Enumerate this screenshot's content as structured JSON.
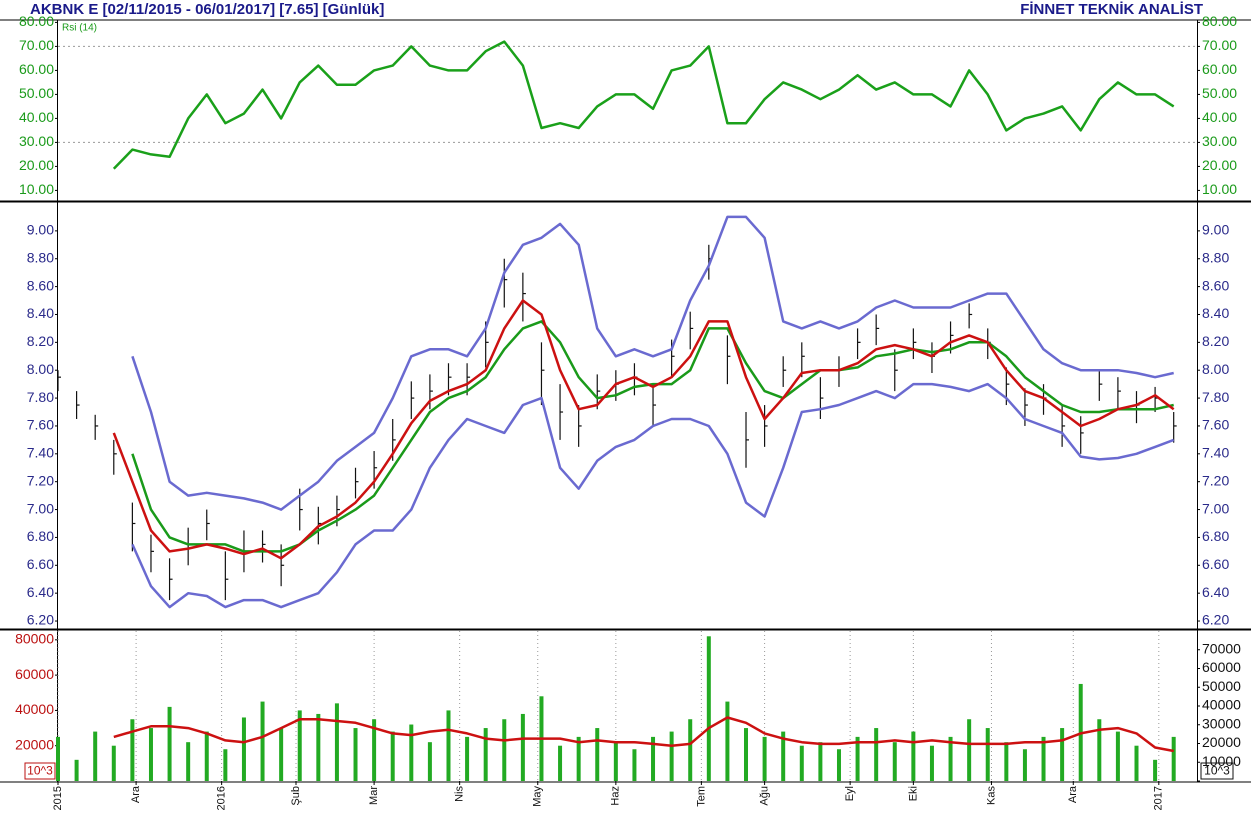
{
  "chart_data": [
    {
      "type": "line",
      "title": "AKBNK E  [02/11/2015 - 06/01/2017]  [7.65]  [Günlük]",
      "source": "FİNNET TEKNİK ANALİST",
      "label": "Rsi (14)",
      "tick_color": "#1a9a1a",
      "x": [
        0,
        5,
        10,
        15,
        20,
        25,
        30,
        35,
        40,
        45,
        50,
        55,
        60,
        65,
        70,
        75,
        80,
        85,
        90,
        95,
        100,
        105,
        110,
        115,
        120,
        125,
        130,
        135,
        140,
        145,
        150,
        155,
        160,
        165,
        170,
        175,
        180,
        185,
        190,
        195,
        200,
        205,
        210,
        215,
        220,
        225,
        230,
        235,
        240,
        245,
        250,
        255,
        260,
        265,
        270,
        275,
        280,
        285,
        290,
        295,
        300
      ],
      "xlim": [
        0,
        306
      ],
      "ylim": [
        6,
        81
      ],
      "yticks": [
        {
          "value": 10,
          "label": "10.00"
        },
        {
          "value": 20,
          "label": "20.00"
        },
        {
          "value": 30,
          "label": "30.00"
        },
        {
          "value": 40,
          "label": "40.00"
        },
        {
          "value": 50,
          "label": "50.00"
        },
        {
          "value": 60,
          "label": "60.00"
        },
        {
          "value": 70,
          "label": "70.00"
        },
        {
          "value": 80,
          "label": "80.00"
        }
      ],
      "levels": [
        30,
        70
      ],
      "series": [
        {
          "name": "Rsi (14)",
          "color": "#1aa01a",
          "values": [
            null,
            null,
            null,
            19,
            27,
            25,
            24,
            40,
            50,
            38,
            42,
            52,
            40,
            55,
            62,
            54,
            54,
            60,
            62,
            70,
            62,
            60,
            60,
            68,
            72,
            62,
            36,
            38,
            36,
            45,
            50,
            50,
            44,
            60,
            62,
            70,
            38,
            38,
            48,
            55,
            52,
            48,
            52,
            58,
            52,
            55,
            50,
            50,
            45,
            60,
            50,
            35,
            40,
            42,
            45,
            35,
            48,
            55,
            50,
            50,
            45
          ]
        }
      ]
    },
    {
      "type": "ohlc",
      "tick_color": "#2a2a8a",
      "x": [
        0,
        5,
        10,
        15,
        20,
        25,
        30,
        35,
        40,
        45,
        50,
        55,
        60,
        65,
        70,
        75,
        80,
        85,
        90,
        95,
        100,
        105,
        110,
        115,
        120,
        125,
        130,
        135,
        140,
        145,
        150,
        155,
        160,
        165,
        170,
        175,
        180,
        185,
        190,
        195,
        200,
        205,
        210,
        215,
        220,
        225,
        230,
        235,
        240,
        245,
        250,
        255,
        260,
        265,
        270,
        275,
        280,
        285,
        290,
        295,
        300
      ],
      "xlim": [
        0,
        306
      ],
      "ylim": [
        6.15,
        9.2
      ],
      "yticks": [
        {
          "value": 6.2,
          "label": "6.20"
        },
        {
          "value": 6.4,
          "label": "6.40"
        },
        {
          "value": 6.6,
          "label": "6.60"
        },
        {
          "value": 6.8,
          "label": "6.80"
        },
        {
          "value": 7,
          "label": "7.00"
        },
        {
          "value": 7.2,
          "label": "7.20"
        },
        {
          "value": 7.4,
          "label": "7.40"
        },
        {
          "value": 7.6,
          "label": "7.60"
        },
        {
          "value": 7.8,
          "label": "7.80"
        },
        {
          "value": 8,
          "label": "8.00"
        },
        {
          "value": 8.2,
          "label": "8.20"
        },
        {
          "value": 8.4,
          "label": "8.40"
        },
        {
          "value": 8.6,
          "label": "8.60"
        },
        {
          "value": 8.8,
          "label": "8.80"
        },
        {
          "value": 9,
          "label": "9.00"
        }
      ],
      "bar_color": "#111111",
      "high": [
        8.0,
        7.85,
        7.68,
        7.5,
        7.05,
        6.82,
        6.65,
        6.87,
        7.0,
        6.7,
        6.85,
        6.85,
        6.75,
        7.15,
        7.02,
        7.1,
        7.3,
        7.42,
        7.65,
        7.92,
        7.97,
        8.05,
        8.05,
        8.35,
        8.8,
        8.7,
        8.2,
        7.9,
        7.75,
        7.97,
        8.0,
        8.05,
        7.9,
        8.22,
        8.42,
        8.9,
        8.25,
        7.7,
        7.75,
        8.1,
        8.2,
        7.95,
        8.1,
        8.3,
        8.4,
        8.15,
        8.3,
        8.2,
        8.35,
        8.48,
        8.3,
        8.02,
        7.87,
        7.9,
        7.75,
        7.67,
        8.0,
        7.95,
        7.85,
        7.88,
        7.7
      ],
      "low": [
        7.85,
        7.65,
        7.5,
        7.25,
        6.7,
        6.55,
        6.35,
        6.6,
        6.78,
        6.35,
        6.55,
        6.62,
        6.45,
        6.85,
        6.75,
        6.88,
        7.08,
        7.15,
        7.35,
        7.65,
        7.72,
        7.82,
        7.82,
        8.02,
        8.45,
        8.35,
        7.75,
        7.5,
        7.45,
        7.72,
        7.78,
        7.82,
        7.6,
        7.95,
        8.15,
        8.65,
        7.9,
        7.3,
        7.45,
        7.88,
        7.95,
        7.65,
        7.88,
        8.08,
        8.18,
        7.85,
        8.08,
        7.98,
        8.12,
        8.3,
        8.08,
        7.75,
        7.6,
        7.68,
        7.45,
        7.4,
        7.78,
        7.72,
        7.62,
        7.7,
        7.48
      ],
      "close": [
        7.95,
        7.75,
        7.6,
        7.4,
        6.9,
        6.7,
        6.5,
        6.75,
        6.9,
        6.5,
        6.7,
        6.75,
        6.6,
        7.0,
        6.9,
        7.0,
        7.2,
        7.3,
        7.5,
        7.8,
        7.85,
        7.95,
        7.95,
        8.2,
        8.65,
        8.55,
        8.0,
        7.7,
        7.6,
        7.85,
        7.9,
        7.95,
        7.75,
        8.1,
        8.3,
        8.8,
        8.1,
        7.5,
        7.6,
        8.0,
        8.1,
        7.8,
        8.0,
        8.2,
        8.3,
        8.0,
        8.2,
        8.1,
        8.25,
        8.4,
        8.2,
        7.9,
        7.75,
        7.8,
        7.6,
        7.55,
        7.9,
        7.85,
        7.75,
        7.8,
        7.6
      ],
      "series": [
        {
          "color": "#6a6ad0",
          "values": [
            null,
            null,
            null,
            null,
            8.1,
            7.7,
            7.2,
            7.1,
            7.12,
            7.1,
            7.08,
            7.05,
            7.0,
            7.1,
            7.2,
            7.35,
            7.45,
            7.55,
            7.8,
            8.1,
            8.15,
            8.15,
            8.1,
            8.3,
            8.7,
            8.9,
            8.95,
            9.05,
            8.9,
            8.3,
            8.1,
            8.15,
            8.1,
            8.15,
            8.5,
            8.75,
            9.1,
            9.1,
            8.95,
            8.35,
            8.3,
            8.35,
            8.3,
            8.35,
            8.45,
            8.5,
            8.45,
            8.45,
            8.45,
            8.5,
            8.55,
            8.55,
            8.35,
            8.15,
            8.05,
            8.0,
            8.0,
            8.0,
            7.98,
            7.95,
            7.98
          ]
        },
        {
          "color": "#6a6ad0",
          "values": [
            null,
            null,
            null,
            null,
            6.75,
            6.45,
            6.3,
            6.4,
            6.38,
            6.3,
            6.35,
            6.35,
            6.3,
            6.35,
            6.4,
            6.55,
            6.75,
            6.85,
            6.85,
            7.0,
            7.3,
            7.5,
            7.65,
            7.6,
            7.55,
            7.75,
            7.8,
            7.3,
            7.15,
            7.35,
            7.45,
            7.5,
            7.6,
            7.65,
            7.65,
            7.6,
            7.4,
            7.05,
            6.95,
            7.3,
            7.7,
            7.72,
            7.75,
            7.8,
            7.85,
            7.8,
            7.9,
            7.9,
            7.88,
            7.85,
            7.9,
            7.8,
            7.65,
            7.6,
            7.55,
            7.38,
            7.36,
            7.37,
            7.4,
            7.45,
            7.5
          ]
        },
        {
          "color": "#1a9a1a",
          "values": [
            null,
            null,
            null,
            null,
            7.4,
            7.0,
            6.8,
            6.75,
            6.75,
            6.75,
            6.7,
            6.7,
            6.7,
            6.75,
            6.85,
            6.92,
            7.0,
            7.1,
            7.3,
            7.5,
            7.7,
            7.8,
            7.85,
            7.95,
            8.15,
            8.3,
            8.35,
            8.2,
            7.95,
            7.8,
            7.82,
            7.88,
            7.9,
            7.9,
            8.0,
            8.3,
            8.3,
            8.05,
            7.85,
            7.8,
            7.9,
            8.0,
            8.0,
            8.02,
            8.1,
            8.12,
            8.15,
            8.13,
            8.15,
            8.2,
            8.2,
            8.1,
            7.95,
            7.85,
            7.75,
            7.7,
            7.7,
            7.72,
            7.72,
            7.72,
            7.75
          ]
        },
        {
          "color": "#cc1111",
          "values": [
            null,
            null,
            null,
            7.55,
            7.2,
            6.85,
            6.7,
            6.72,
            6.75,
            6.72,
            6.68,
            6.72,
            6.65,
            6.75,
            6.88,
            6.95,
            7.05,
            7.2,
            7.4,
            7.62,
            7.78,
            7.85,
            7.9,
            8.0,
            8.3,
            8.5,
            8.4,
            8.0,
            7.72,
            7.75,
            7.9,
            7.95,
            7.88,
            7.95,
            8.1,
            8.35,
            8.35,
            7.95,
            7.65,
            7.8,
            7.98,
            8.0,
            8.0,
            8.05,
            8.15,
            8.18,
            8.15,
            8.1,
            8.2,
            8.25,
            8.2,
            8.0,
            7.85,
            7.8,
            7.7,
            7.6,
            7.65,
            7.72,
            7.75,
            7.82,
            7.72
          ]
        }
      ]
    },
    {
      "type": "bar",
      "tick_color": "#bb1111",
      "y2_tick_color": "#111111",
      "unit_label": "10^3",
      "x": [
        0,
        5,
        10,
        15,
        20,
        25,
        30,
        35,
        40,
        45,
        50,
        55,
        60,
        65,
        70,
        75,
        80,
        85,
        90,
        95,
        100,
        105,
        110,
        115,
        120,
        125,
        130,
        135,
        140,
        145,
        150,
        155,
        160,
        165,
        170,
        175,
        180,
        185,
        190,
        195,
        200,
        205,
        210,
        215,
        220,
        225,
        230,
        235,
        240,
        245,
        250,
        255,
        260,
        265,
        270,
        275,
        280,
        285,
        290,
        295,
        300
      ],
      "xlim": [
        0,
        306
      ],
      "xticks": [
        {
          "value": 0,
          "label": "2015"
        },
        {
          "value": 21,
          "label": "Ara"
        },
        {
          "value": 44,
          "label": "2016"
        },
        {
          "value": 64,
          "label": "Şub"
        },
        {
          "value": 85,
          "label": "Mar"
        },
        {
          "value": 108,
          "label": "Nis"
        },
        {
          "value": 129,
          "label": "May"
        },
        {
          "value": 150,
          "label": "Haz"
        },
        {
          "value": 173,
          "label": "Tem"
        },
        {
          "value": 190,
          "label": "Ağu"
        },
        {
          "value": 213,
          "label": "Eyl"
        },
        {
          "value": 230,
          "label": "Eki"
        },
        {
          "value": 251,
          "label": "Kas"
        },
        {
          "value": 273,
          "label": "Ara"
        },
        {
          "value": 296,
          "label": "2017"
        }
      ],
      "ylim": [
        0,
        85000
      ],
      "yticks": [
        20000,
        40000,
        60000,
        80000
      ],
      "y2lim": [
        0,
        80000
      ],
      "y2ticks": [
        0,
        10000,
        20000,
        30000,
        40000,
        50000,
        60000,
        70000
      ],
      "color": "#22aa22",
      "values": [
        25000,
        12000,
        28000,
        20000,
        35000,
        30000,
        42000,
        22000,
        28000,
        18000,
        36000,
        45000,
        30000,
        40000,
        38000,
        44000,
        30000,
        35000,
        28000,
        32000,
        22000,
        40000,
        25000,
        30000,
        35000,
        38000,
        48000,
        20000,
        25000,
        30000,
        22000,
        18000,
        25000,
        28000,
        35000,
        82000,
        45000,
        30000,
        25000,
        28000,
        20000,
        22000,
        18000,
        25000,
        30000,
        22000,
        28000,
        20000,
        25000,
        35000,
        30000,
        22000,
        18000,
        25000,
        30000,
        55000,
        35000,
        28000,
        20000,
        12000,
        25000
      ],
      "series": [
        {
          "color": "#cc1111",
          "values": [
            null,
            null,
            null,
            25000,
            28000,
            31000,
            31000,
            30000,
            27000,
            23000,
            22000,
            25000,
            30000,
            35000,
            35000,
            34000,
            33000,
            30000,
            27000,
            26000,
            28000,
            29000,
            27000,
            24000,
            23000,
            24000,
            24000,
            24000,
            22000,
            23000,
            22000,
            22000,
            21000,
            20000,
            21000,
            30000,
            36000,
            33000,
            27000,
            24000,
            22000,
            21000,
            21000,
            22000,
            22000,
            23000,
            22000,
            23000,
            22000,
            21000,
            21000,
            21000,
            22000,
            22000,
            23000,
            27000,
            29000,
            30000,
            27000,
            19000,
            17000
          ]
        }
      ]
    }
  ]
}
